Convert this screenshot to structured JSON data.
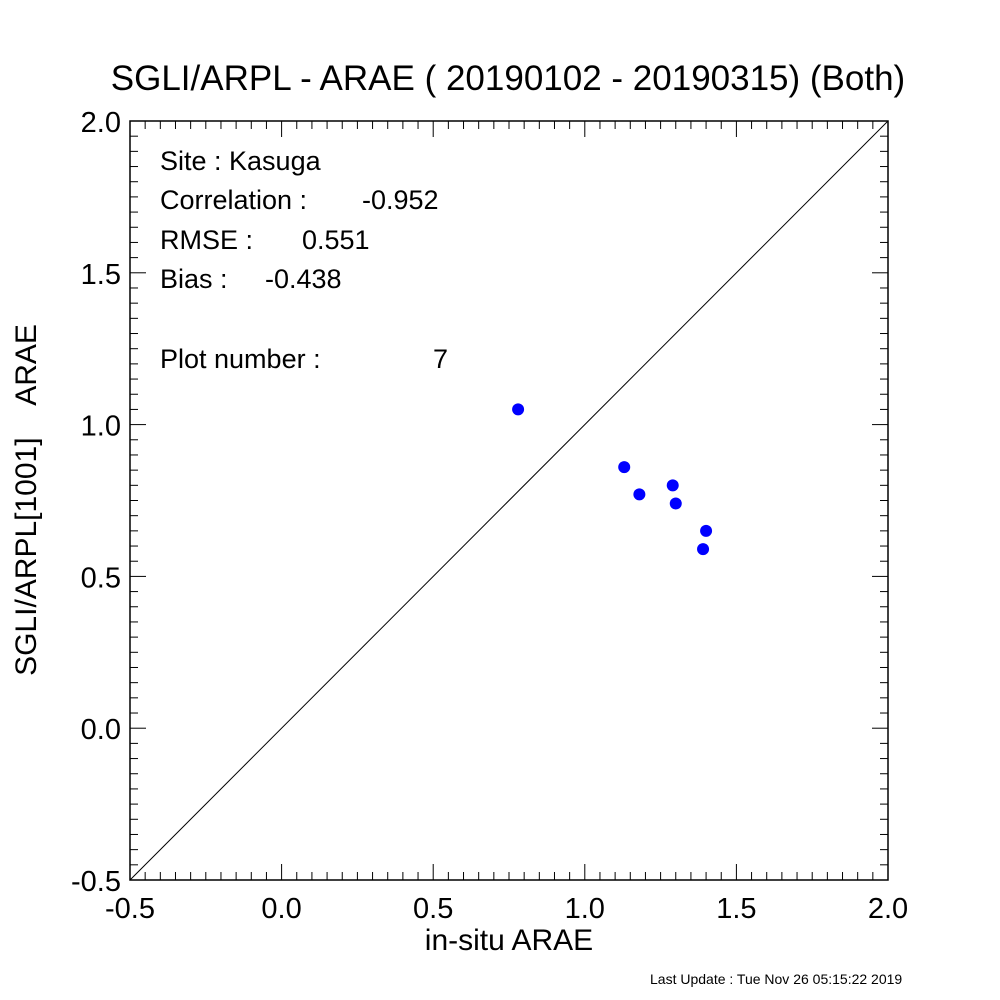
{
  "chart_data": {
    "type": "scatter",
    "title": "SGLI/ARPL - ARAE ( 20190102 - 20190315) (Both)",
    "xlabel": "in-situ ARAE",
    "ylabel": "SGLI/ARPL[1001]    ARAE",
    "xlim": [
      -0.5,
      2.0
    ],
    "ylim": [
      -0.5,
      2.0
    ],
    "x_ticks": [
      "-0.5",
      "0.0",
      "0.5",
      "1.0",
      "1.5",
      "2.0"
    ],
    "y_ticks": [
      "-0.5",
      "0.0",
      "0.5",
      "1.0",
      "1.5",
      "2.0"
    ],
    "grid": false,
    "reference_line": "1:1 diagonal",
    "marker_color": "#0000ff",
    "points": [
      {
        "x": 0.78,
        "y": 1.05
      },
      {
        "x": 1.13,
        "y": 0.86
      },
      {
        "x": 1.18,
        "y": 0.77
      },
      {
        "x": 1.29,
        "y": 0.8
      },
      {
        "x": 1.3,
        "y": 0.74
      },
      {
        "x": 1.39,
        "y": 0.59
      },
      {
        "x": 1.4,
        "y": 0.65
      }
    ],
    "annotations": {
      "site": "Site : Kasuga",
      "correlation_label": "Correlation :",
      "correlation_value": "-0.952",
      "rmse_label": "RMSE :",
      "rmse_value": "0.551",
      "bias_label": "Bias :",
      "bias_value": "-0.438",
      "plot_number_label": "Plot number :",
      "plot_number_value": "7"
    }
  },
  "footer": "Last Update : Tue Nov 26 05:15:22 2019"
}
